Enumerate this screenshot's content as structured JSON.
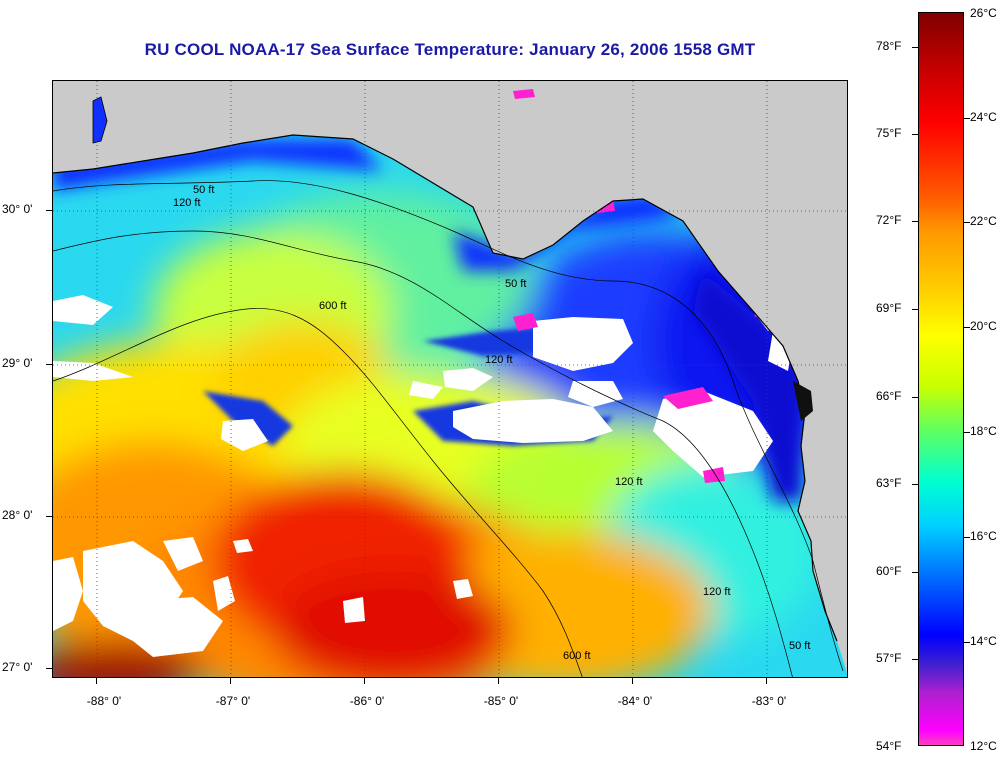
{
  "title": "RU COOL  NOAA-17  Sea Surface Temperature:  January 26, 2006 1558 GMT",
  "latitude_labels": [
    "30° 0'",
    "29° 0'",
    "28° 0'",
    "27° 0'"
  ],
  "longitude_labels": [
    "-88° 0'",
    "-87° 0'",
    "-86° 0'",
    "-85° 0'",
    "-84° 0'",
    "-83° 0'"
  ],
  "colorbar": {
    "fahrenheit": [
      "78°F",
      "75°F",
      "72°F",
      "69°F",
      "66°F",
      "63°F",
      "60°F",
      "57°F",
      "54°F"
    ],
    "celsius": [
      "26°C",
      "24°C",
      "22°C",
      "20°C",
      "18°C",
      "16°C",
      "14°C",
      "12°C"
    ]
  },
  "contour_labels": [
    "50 ft",
    "120 ft",
    "600 ft",
    "120 ft",
    "50 ft",
    "120 ft",
    "120 ft",
    "600 ft",
    "50 ft"
  ],
  "colors": {
    "land": "#cacaca",
    "cloud": "#ffffff",
    "title": "#1a1aa6"
  }
}
